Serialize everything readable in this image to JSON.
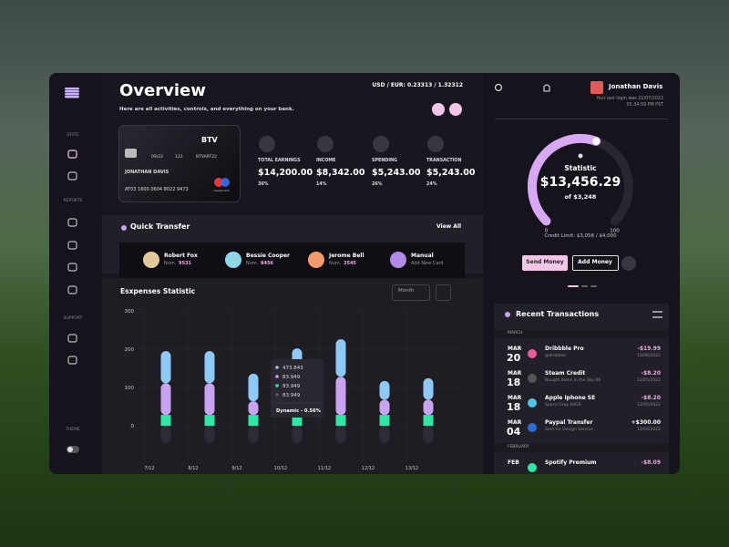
{
  "header": {
    "title": "Overview",
    "subtitle": "Here are all activities, controls, and everything on your bank.",
    "exchange_rate": "USD / EUR: 0.23313 / 1.32312"
  },
  "user": {
    "name": "Jonathan Davis",
    "last_login": "Your last login was 21/07/2022",
    "last_login_time": "05:34:59 PM PST"
  },
  "sidebar": {
    "sections": [
      "STATE",
      "REPORTS",
      "SUPPORT",
      "THEME"
    ]
  },
  "card": {
    "brand": "BTV",
    "expiry": "09/22",
    "cvv": "123",
    "code": "BTVART22",
    "holder": "JONATHAN DAVIS",
    "number": "AT03 1600 0604 8022 9473",
    "network": "mastercard"
  },
  "stats": [
    {
      "label": "TOTAL EARNINGS",
      "value": "$14,200.00",
      "change": "36%"
    },
    {
      "label": "INCOME",
      "value": "$8,342.00",
      "change": "14%"
    },
    {
      "label": "SPENDING",
      "value": "$5,243.00",
      "change": "26%"
    },
    {
      "label": "TRANSACTION",
      "value": "$5,243.00",
      "change": "24%"
    }
  ],
  "quick_transfer": {
    "title": "Quick Transfer",
    "view_all": "View All",
    "contacts": [
      {
        "name": "Robert Fox",
        "prefix": "Num.",
        "number": "9531"
      },
      {
        "name": "Bessie Cooper",
        "prefix": "Num.",
        "number": "8456"
      },
      {
        "name": "Jerome Bell",
        "prefix": "Num.",
        "number": "3545"
      },
      {
        "name": "Manual",
        "note": "Add New Card"
      }
    ]
  },
  "chart_data": {
    "type": "bar",
    "stacked": true,
    "title": "Esxpenses Statistic",
    "period": "Month",
    "categories": [
      "7/12",
      "8/12",
      "9/12",
      "10/12",
      "11/12",
      "12/12",
      "13/12"
    ],
    "series": [
      {
        "color": "#2ee6a6",
        "values": [
          28,
          28,
          28,
          28,
          28,
          28,
          28
        ]
      },
      {
        "color": "#c9a3f2",
        "values": [
          83,
          83,
          36,
          60,
          100,
          40,
          40
        ]
      },
      {
        "color": "#8ec9f5",
        "values": [
          84,
          84,
          72,
          114,
          98,
          49,
          56
        ]
      },
      {
        "color": "#2e2b36",
        "values": [
          -45,
          -45,
          -45,
          -45,
          -45,
          -45,
          -45
        ]
      }
    ],
    "ylim": [
      -50,
      300
    ],
    "yticks": [
      0,
      100,
      200,
      300
    ],
    "grid": true,
    "tooltip": {
      "values": [
        "473.843",
        "83.949",
        "83.949",
        "83.949"
      ],
      "label": "Dynamic - 0.56%"
    }
  },
  "gauge": {
    "title": "Statistic",
    "amount": "$13,456.29",
    "of": "of $3,248",
    "value": 57,
    "lim": [
      0,
      100
    ],
    "ticks": [
      0,
      100
    ],
    "credit_limit": "Credit Limit: $3,056 / $4,000"
  },
  "actions": [
    "Send Money",
    "Add Money"
  ],
  "transactions": {
    "title": "Recent Transactions",
    "groups": [
      {
        "label": "MARCH",
        "items": [
          {
            "month": "MAR",
            "day": "20",
            "name": "Dribbble Pro",
            "note": "@dribbble",
            "amount": "-$19.99",
            "date": "10/06/2022"
          },
          {
            "month": "MAR",
            "day": "18",
            "name": "Steam Credit",
            "note": "Bought Items in the Sky 66",
            "amount": "-$8.20",
            "date": "12/05/2022"
          },
          {
            "month": "MAR",
            "day": "18",
            "name": "Apple Iphone SE",
            "note": "Space Gray 64GB",
            "amount": "-$8.20",
            "date": "12/05/2022"
          },
          {
            "month": "MAR",
            "day": "04",
            "name": "Paypal Transfer",
            "note": "Sent for Design Service",
            "amount": "+$300.00",
            "date": "12/04/2022"
          }
        ]
      },
      {
        "label": "FEBRUARY",
        "items": [
          {
            "month": "FEB",
            "name": "Spotify Premium",
            "amount": "-$8.09"
          }
        ]
      }
    ]
  }
}
